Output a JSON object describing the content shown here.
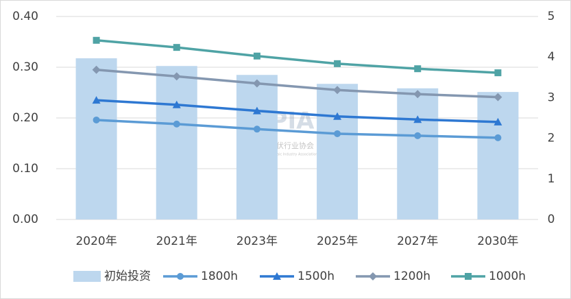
{
  "chart_data": {
    "type": "bar-line",
    "categories": [
      "2020年",
      "2021年",
      "2023年",
      "2025年",
      "2027年",
      "2030年"
    ],
    "ylim": [
      0,
      0.4
    ],
    "yticks": [
      {
        "value": 0,
        "label": "0.00"
      },
      {
        "value": 0.1,
        "label": "0.10"
      },
      {
        "value": 0.2,
        "label": "0.20"
      },
      {
        "value": 0.3,
        "label": "0.30"
      },
      {
        "value": 0.4,
        "label": "0.40"
      }
    ],
    "y2lim": [
      0,
      5
    ],
    "y2ticks": [
      0,
      1,
      2,
      3,
      4,
      5
    ],
    "grid": true,
    "legend": "bottom",
    "watermark": {
      "logo": "CPIA",
      "name": "中国光伏行业协会",
      "english": "China Photovoltaic Industry Association"
    },
    "series": [
      {
        "name": "初始投资",
        "type": "bar",
        "axis": "y2",
        "color": "#bdd7ee",
        "values": [
          3.97,
          3.78,
          3.56,
          3.34,
          3.23,
          3.14
        ]
      },
      {
        "name": "1800h",
        "type": "line",
        "marker": "circle",
        "color": "#5b9bd5",
        "values": [
          0.196,
          0.188,
          0.178,
          0.169,
          0.165,
          0.161
        ]
      },
      {
        "name": "1500h",
        "type": "line",
        "marker": "triangle",
        "color": "#2e78d2",
        "values": [
          0.235,
          0.226,
          0.214,
          0.203,
          0.197,
          0.192
        ]
      },
      {
        "name": "1200h",
        "type": "line",
        "marker": "diamond",
        "color": "#8497b0",
        "values": [
          0.295,
          0.282,
          0.268,
          0.255,
          0.247,
          0.241
        ]
      },
      {
        "name": "1000h",
        "type": "line",
        "marker": "square",
        "color": "#4fa3a5",
        "values": [
          0.353,
          0.339,
          0.322,
          0.307,
          0.297,
          0.289
        ]
      }
    ]
  }
}
